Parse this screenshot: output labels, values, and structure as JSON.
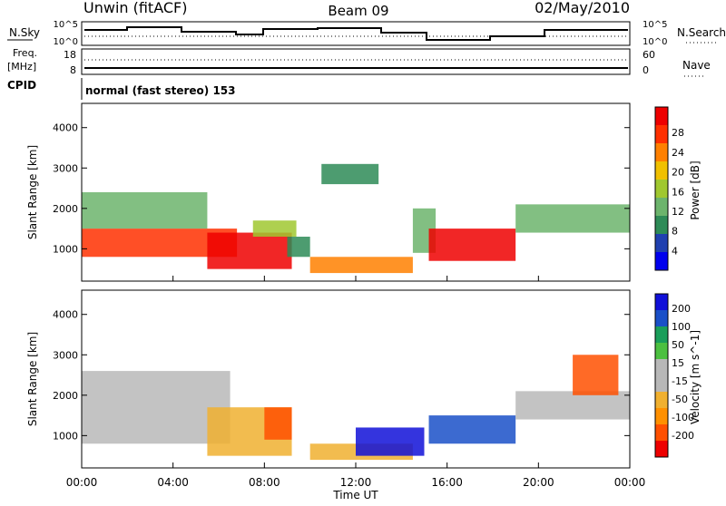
{
  "header": {
    "station": "Unwin (fitACF)",
    "beam": "Beam 09",
    "date": "02/May/2010"
  },
  "labels": {
    "nsky": "N.Sky",
    "nsearch": "N.Search",
    "freq": "Freq.",
    "freq_unit": "[MHz]",
    "nave": "Nave",
    "cpid": "CPID",
    "cpid_value": "normal (fast stereo) 153"
  },
  "noise_axis": {
    "left_top": "10^5",
    "left_bottom": "10^0",
    "right_top": "10^5",
    "right_bottom": "10^0"
  },
  "freq_axis": {
    "ticks": [
      "18",
      "8"
    ],
    "right_ticks": [
      "60",
      "0"
    ]
  },
  "colors": {
    "power_scale": [
      "#0000ee",
      "#2040b0",
      "#2e8b57",
      "#6cb46c",
      "#a0c830",
      "#f0c000",
      "#ff8000",
      "#ff3000",
      "#ee0000"
    ],
    "velocity_scale": [
      "#ee0000",
      "#ff5000",
      "#ff9000",
      "#f0b030",
      "#b8b8b8",
      "#b8b8b8",
      "#4cc040",
      "#1a9e5a",
      "#1a50c8",
      "#1010d8"
    ]
  },
  "chart_data": [
    {
      "type": "heatmap",
      "name": "power-panel",
      "ylabel": "Slant Range [km]",
      "yticks": [
        1000,
        2000,
        3000,
        4000
      ],
      "ylim": [
        200,
        4600
      ],
      "xlim": [
        0,
        24
      ],
      "xticks": [
        "00:00",
        "04:00",
        "08:00",
        "12:00",
        "16:00",
        "20:00",
        "00:00"
      ],
      "colorbar": {
        "label": "Power [dB]",
        "ticks": [
          "4",
          "8",
          "12",
          "16",
          "20",
          "24",
          "28"
        ],
        "range": [
          0,
          30
        ]
      },
      "regions": [
        {
          "t0": 0.0,
          "t1": 6.8,
          "r0": 800,
          "r1": 1500,
          "value": 26
        },
        {
          "t0": 0.0,
          "t1": 5.5,
          "r0": 1500,
          "r1": 2400,
          "value": 10
        },
        {
          "t0": 5.5,
          "t1": 9.2,
          "r0": 500,
          "r1": 1400,
          "value": 27
        },
        {
          "t0": 7.5,
          "t1": 9.4,
          "r0": 1300,
          "r1": 1700,
          "value": 14
        },
        {
          "t0": 9.0,
          "t1": 10.0,
          "r0": 800,
          "r1": 1300,
          "value": 8
        },
        {
          "t0": 10.0,
          "t1": 14.5,
          "r0": 400,
          "r1": 800,
          "value": 22
        },
        {
          "t0": 14.5,
          "t1": 15.5,
          "r0": 900,
          "r1": 2000,
          "value": 10
        },
        {
          "t0": 15.2,
          "t1": 19.0,
          "r0": 700,
          "r1": 1500,
          "value": 29
        },
        {
          "t0": 19.0,
          "t1": 24.0,
          "r0": 1400,
          "r1": 2100,
          "value": 10
        },
        {
          "t0": 10.5,
          "t1": 13.0,
          "r0": 2600,
          "r1": 3100,
          "value": 8
        }
      ]
    },
    {
      "type": "heatmap",
      "name": "velocity-panel",
      "ylabel": "Slant Range [km]",
      "yticks": [
        1000,
        2000,
        3000,
        4000
      ],
      "ylim": [
        200,
        4600
      ],
      "xlim": [
        0,
        24
      ],
      "xticks": [
        "00:00",
        "04:00",
        "08:00",
        "12:00",
        "16:00",
        "20:00",
        "00:00"
      ],
      "xlabel": "Time UT",
      "colorbar": {
        "label": "Velocity [m s^-1]",
        "ticks": [
          "200",
          "100",
          "50",
          "15",
          "-15",
          "-50",
          "-100",
          "-200"
        ],
        "range": [
          -250,
          250
        ]
      },
      "regions": [
        {
          "t0": 0.0,
          "t1": 6.5,
          "r0": 800,
          "r1": 2600,
          "value": 0
        },
        {
          "t0": 5.5,
          "t1": 9.2,
          "r0": 500,
          "r1": 1700,
          "value": -80
        },
        {
          "t0": 8.0,
          "t1": 9.2,
          "r0": 900,
          "r1": 1700,
          "value": -180
        },
        {
          "t0": 10.0,
          "t1": 14.5,
          "r0": 400,
          "r1": 800,
          "value": -60
        },
        {
          "t0": 12.0,
          "t1": 15.0,
          "r0": 500,
          "r1": 1200,
          "value": 200
        },
        {
          "t0": 15.2,
          "t1": 19.0,
          "r0": 800,
          "r1": 1500,
          "value": 180
        },
        {
          "t0": 19.0,
          "t1": 24.0,
          "r0": 1400,
          "r1": 2100,
          "value": 0
        },
        {
          "t0": 21.5,
          "t1": 23.5,
          "r0": 2000,
          "r1": 3000,
          "value": -200
        }
      ]
    }
  ]
}
